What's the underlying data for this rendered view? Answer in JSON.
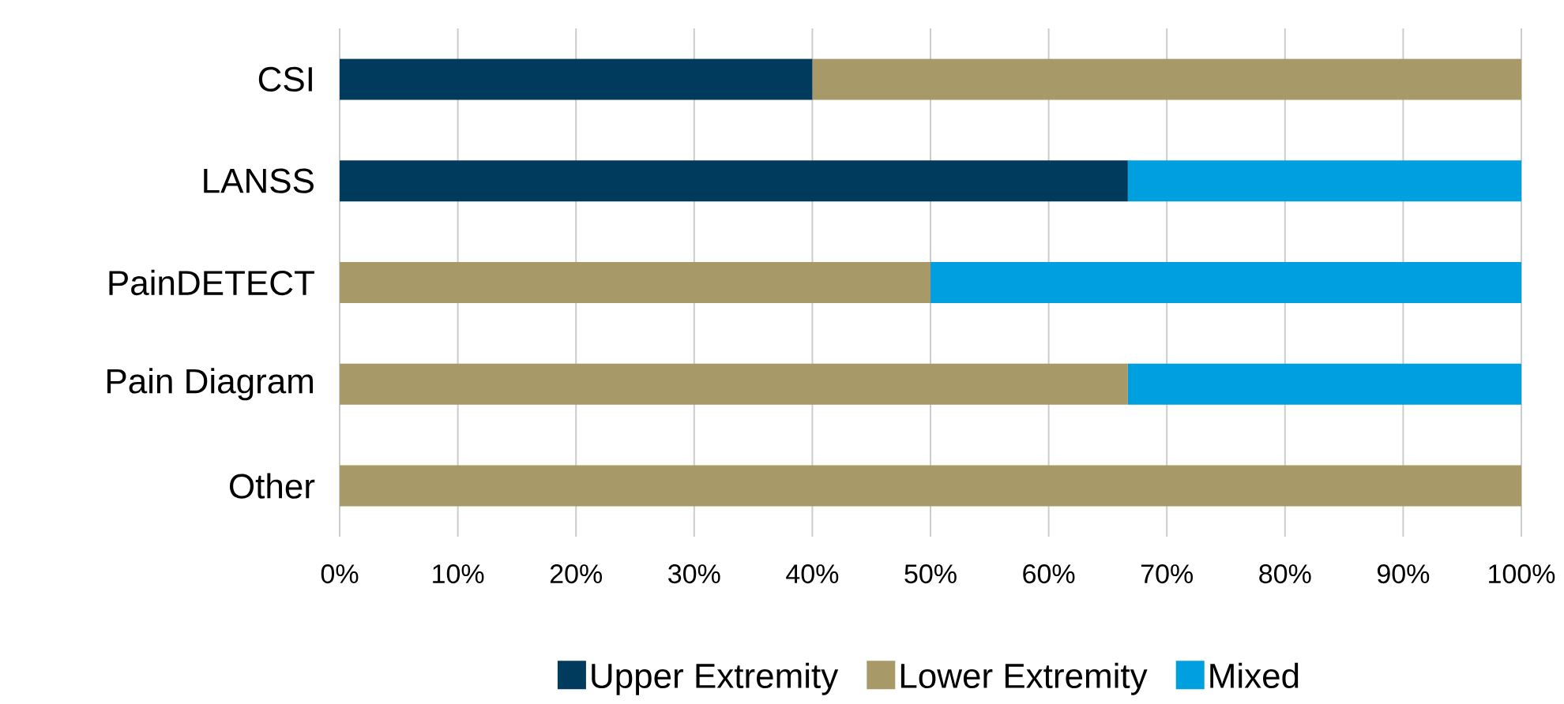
{
  "chart_data": {
    "type": "bar",
    "orientation": "horizontal",
    "stacked": true,
    "categories": [
      "CSI",
      "LANSS",
      "PainDETECT",
      "Pain Diagram",
      "Other"
    ],
    "series": [
      {
        "name": "Upper Extremity",
        "color": "#003a5d",
        "values": [
          40,
          66.7,
          null,
          null,
          null
        ]
      },
      {
        "name": "Lower Extremity",
        "color": "#a89968",
        "values": [
          60,
          null,
          50,
          66.7,
          100
        ]
      },
      {
        "name": "Mixed",
        "color": "#009fdf",
        "values": [
          null,
          33.3,
          50,
          33.3,
          null
        ]
      }
    ],
    "xlim": [
      0,
      100
    ],
    "xticks": [
      {
        "value": 0,
        "label": "0%"
      },
      {
        "value": 10,
        "label": "10%"
      },
      {
        "value": 20,
        "label": "20%"
      },
      {
        "value": 30,
        "label": "30%"
      },
      {
        "value": 40,
        "label": "40%"
      },
      {
        "value": 50,
        "label": "50%"
      },
      {
        "value": 60,
        "label": "60%"
      },
      {
        "value": 70,
        "label": "70%"
      },
      {
        "value": 80,
        "label": "80%"
      },
      {
        "value": 90,
        "label": "90%"
      },
      {
        "value": 100,
        "label": "100%"
      }
    ],
    "grid": "x",
    "legend": "bottom"
  }
}
